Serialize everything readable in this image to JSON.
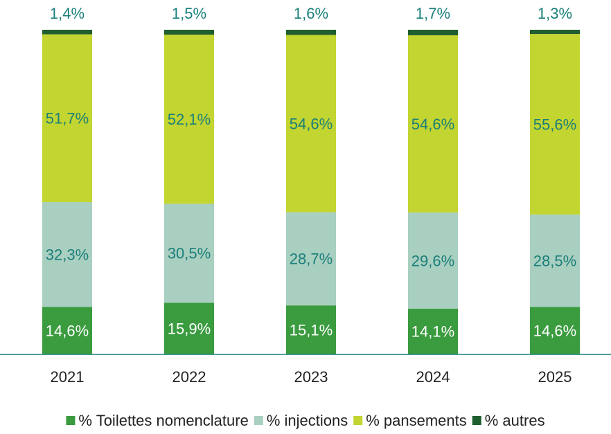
{
  "chart_data": {
    "type": "stacked-bar",
    "categories": [
      "2021",
      "2022",
      "2023",
      "2024",
      "2025"
    ],
    "ylim": [
      0,
      100
    ],
    "series": [
      {
        "name": "% Toilettes nomenclature",
        "color": "#3a9b3f",
        "label_color": "#ffffff",
        "values": [
          14.6,
          15.9,
          15.1,
          14.1,
          14.6
        ],
        "value_labels": [
          "14,6%",
          "15,9%",
          "15,1%",
          "14,1%",
          "14,6%"
        ]
      },
      {
        "name": "% injections",
        "color": "#a9cfc0",
        "label_color": "#1a7f7a",
        "values": [
          32.3,
          30.5,
          28.7,
          29.6,
          28.5
        ],
        "value_labels": [
          "32,3%",
          "30,5%",
          "28,7%",
          "29,6%",
          "28,5%"
        ]
      },
      {
        "name": "% pansements",
        "color": "#c2d530",
        "label_color": "#1a7f7a",
        "values": [
          51.7,
          52.1,
          54.6,
          54.6,
          55.6
        ],
        "value_labels": [
          "51,7%",
          "52,1%",
          "54,6%",
          "54,6%",
          "55,6%"
        ]
      },
      {
        "name": "% autres",
        "color": "#1f5e2e",
        "label_color": "#1a7f7a",
        "values": [
          1.4,
          1.5,
          1.6,
          1.7,
          1.3
        ],
        "value_labels": [
          "1,4%",
          "1,5%",
          "1,6%",
          "1,7%",
          "1,3%"
        ]
      }
    ]
  }
}
